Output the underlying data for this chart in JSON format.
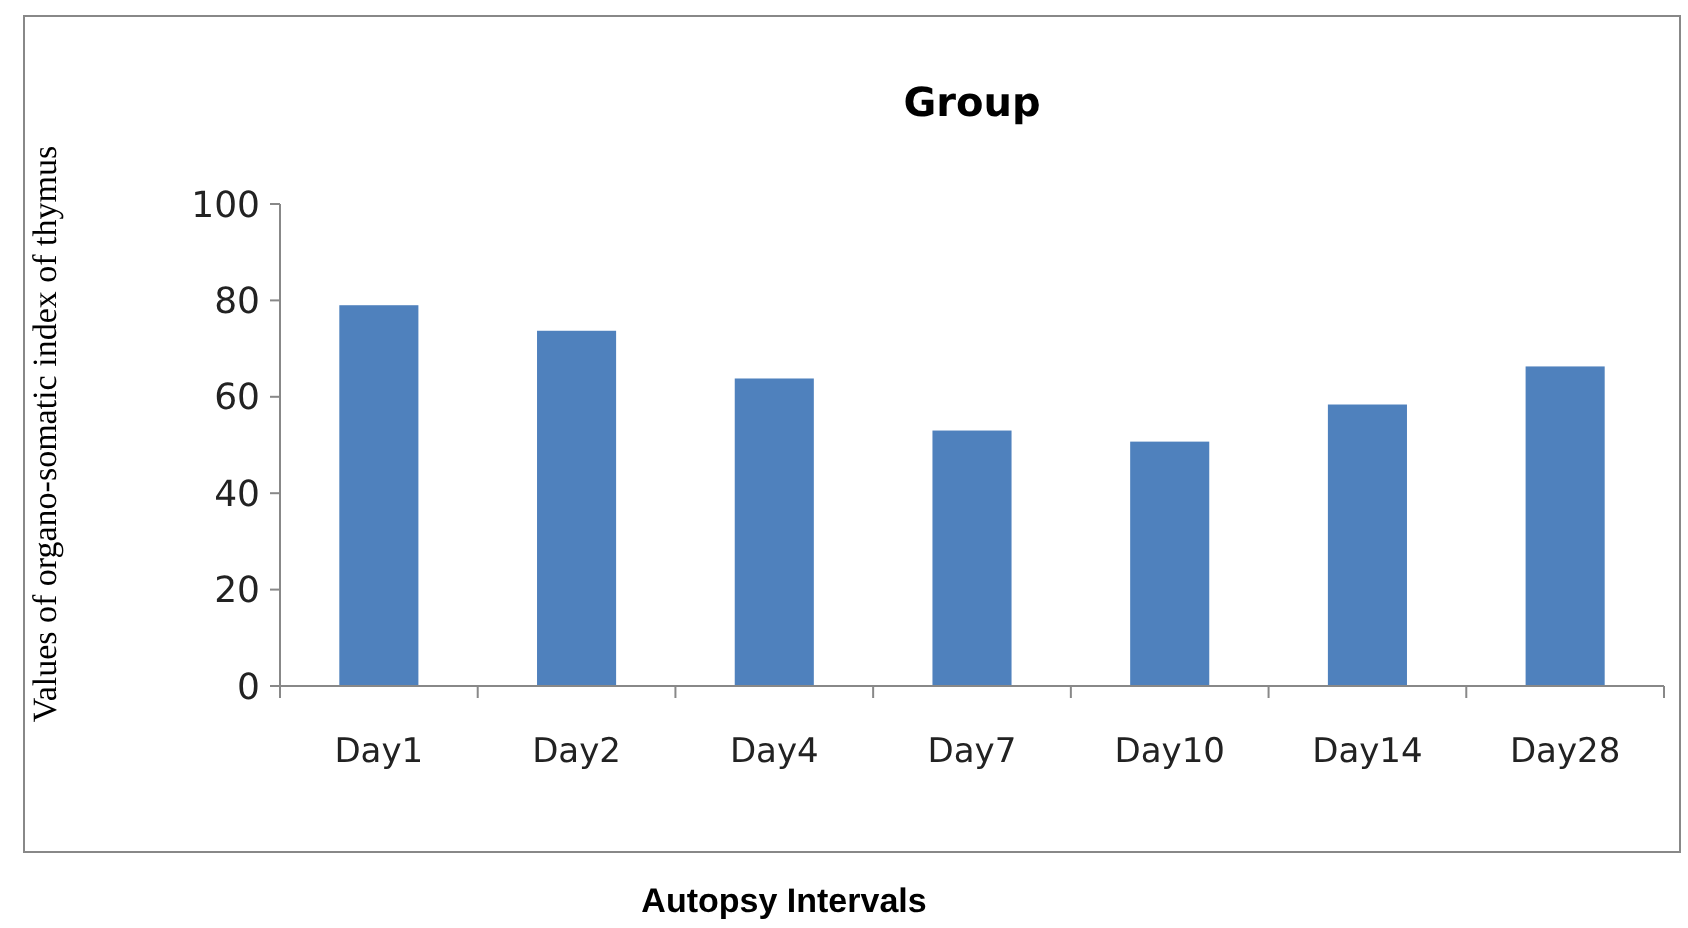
{
  "chart_data": {
    "type": "bar",
    "title": "Group",
    "xlabel": "Autopsy Intervals",
    "ylabel": "Values of organo-somatic index of thymus",
    "categories": [
      "Day1",
      "Day2",
      "Day4",
      "Day7",
      "Day10",
      "Day14",
      "Day28"
    ],
    "values": [
      79,
      73.7,
      63.8,
      53,
      50.7,
      58.4,
      66.3
    ],
    "color": "#4f81bd",
    "ylim": [
      0,
      100
    ],
    "yticks": [
      0,
      20,
      40,
      60,
      80,
      100
    ],
    "grid": false
  }
}
